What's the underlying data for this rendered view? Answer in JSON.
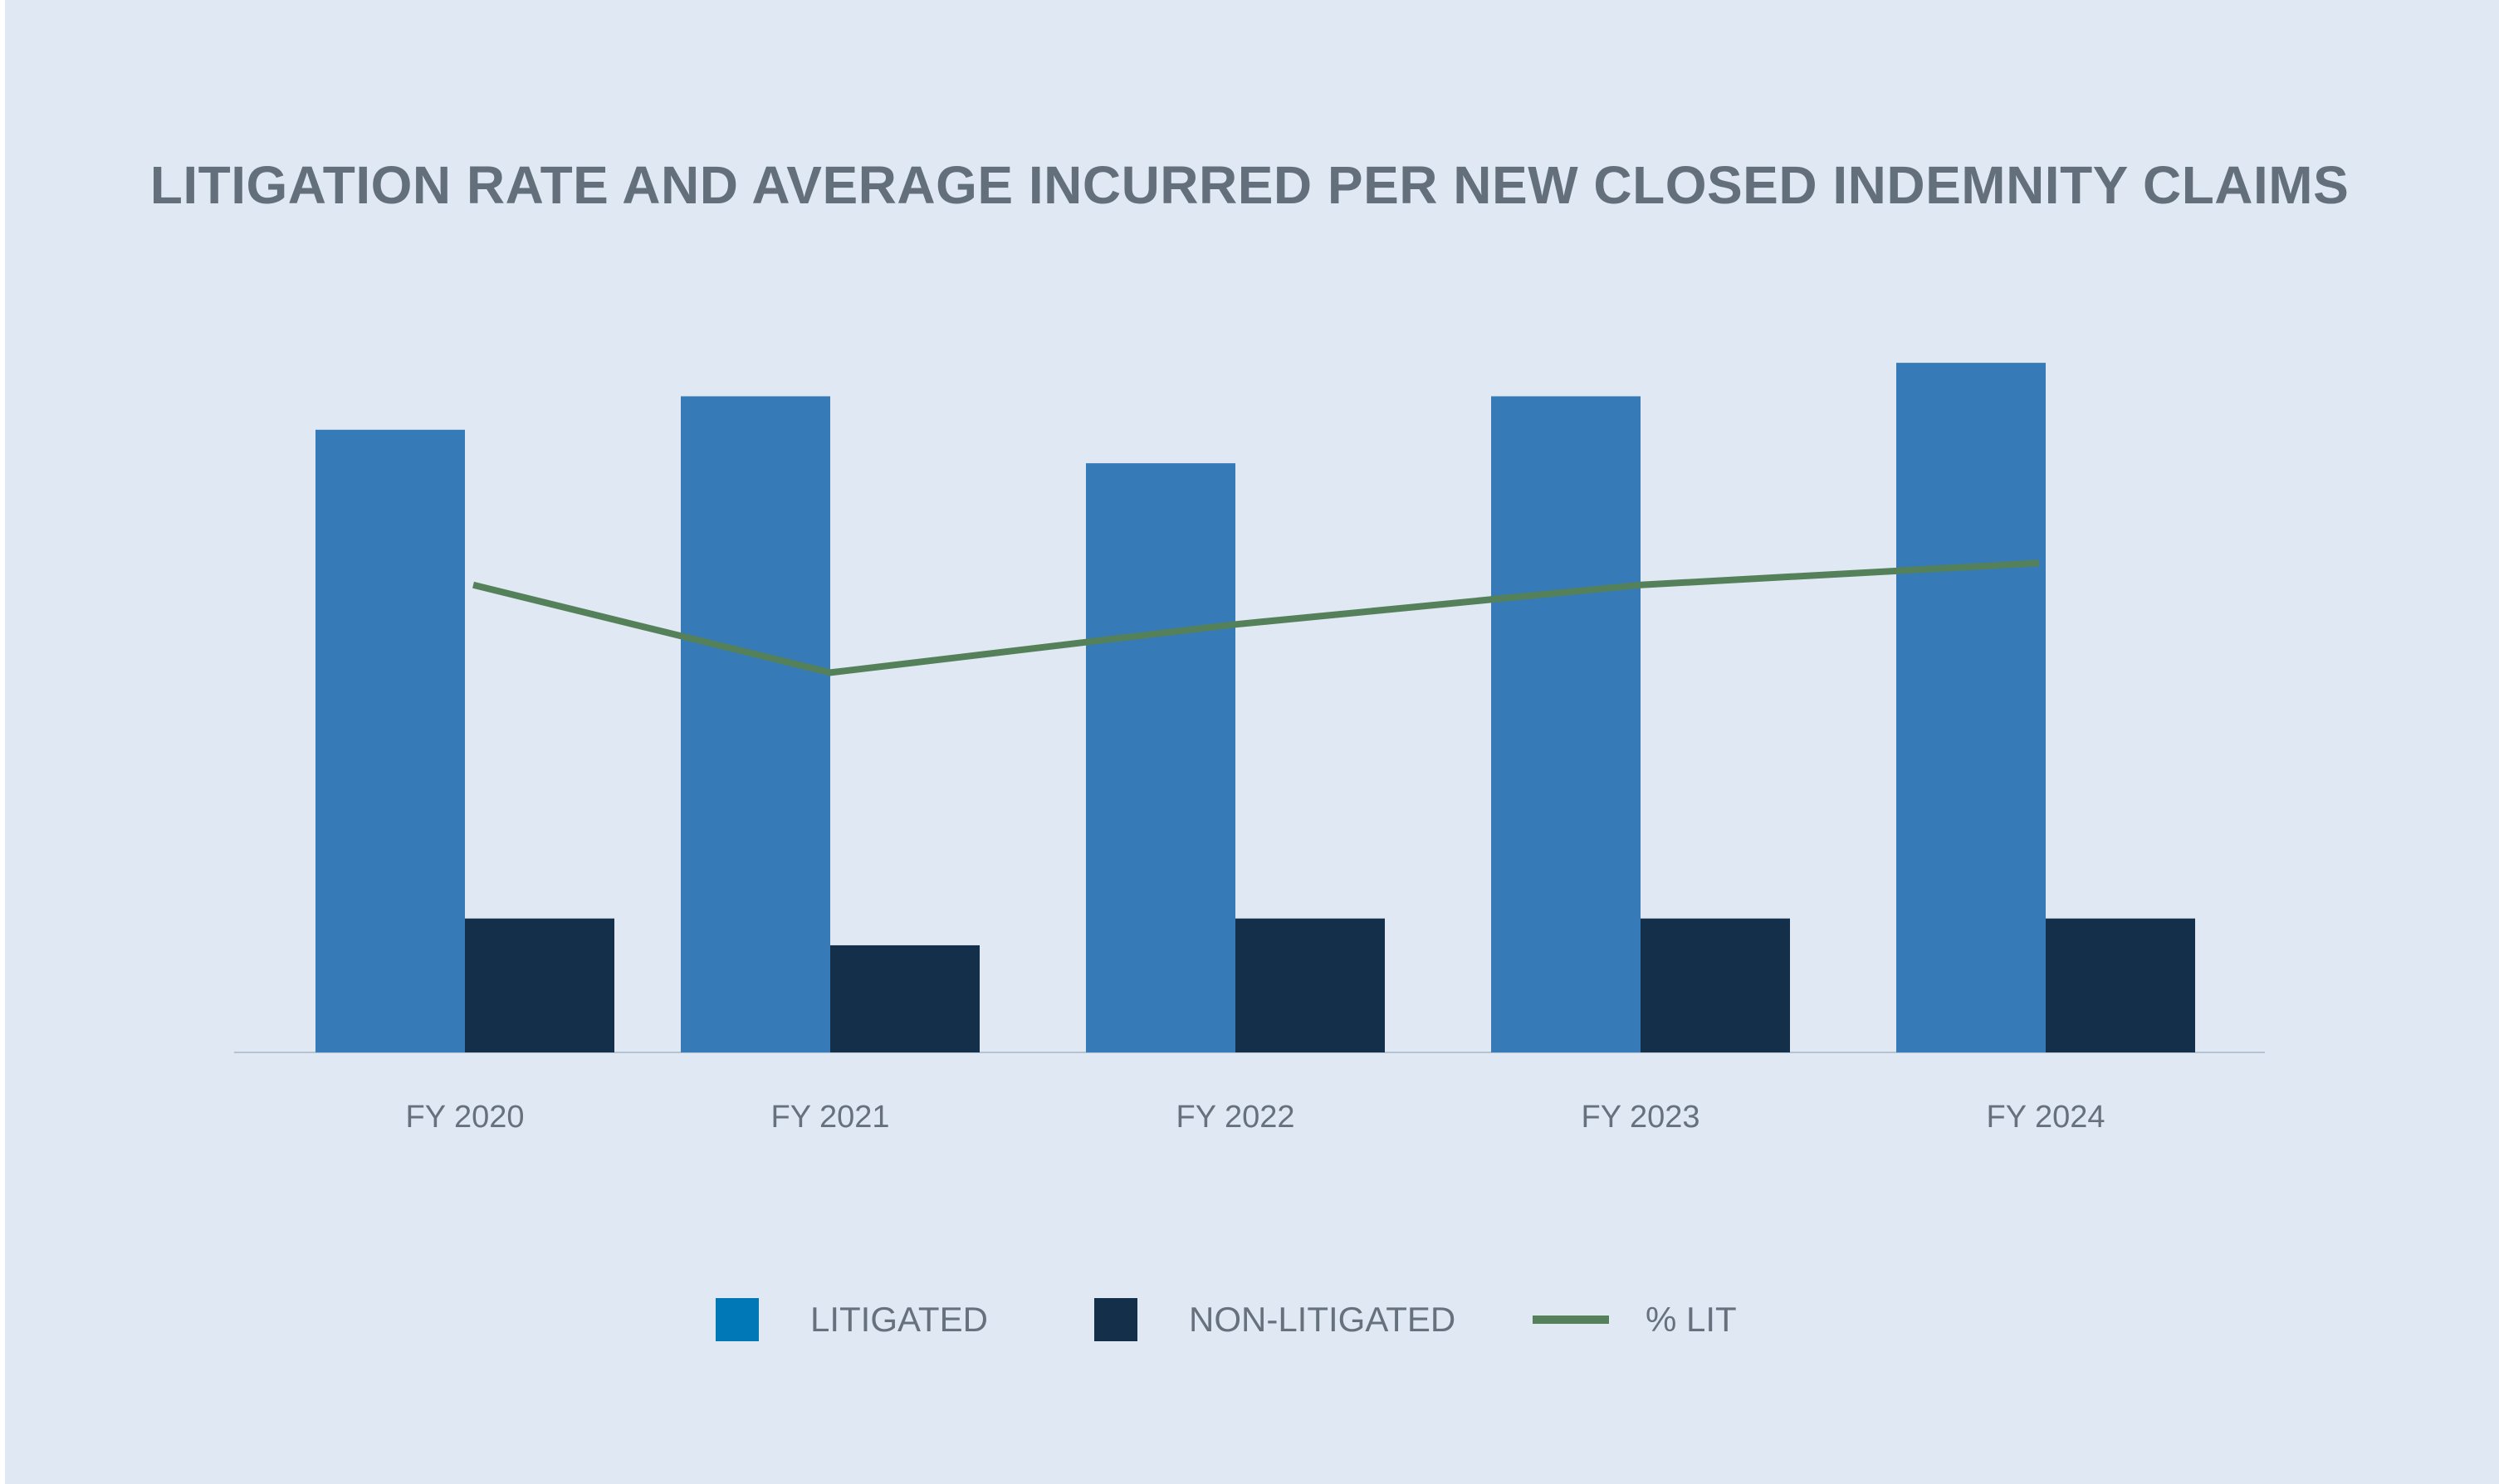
{
  "colors": {
    "background": "#dfe8f3",
    "litigated": "#367bb8",
    "non_litigated": "#132f49",
    "pct_lit": "#548159",
    "axis": "#b6c3d3",
    "text": "#66717d"
  },
  "chart_data": {
    "type": "bar",
    "title": "LITIGATION RATE AND AVERAGE INCURRED PER NEW CLOSED INDEMNITY CLAIMS",
    "categories": [
      "FY 2020",
      "FY 2021",
      "FY 2022",
      "FY 2023",
      "FY 2024"
    ],
    "series": [
      {
        "name": "LITIGATED",
        "type": "bar",
        "values": [
          93,
          98,
          88,
          98,
          103
        ]
      },
      {
        "name": "NON-LITIGATED",
        "type": "bar",
        "values": [
          20,
          16,
          20,
          20,
          20
        ]
      },
      {
        "name": "% LIT",
        "type": "line",
        "values": [
          32,
          26,
          29.3,
          32,
          33.5
        ]
      }
    ],
    "ylim": [
      0,
      120
    ],
    "line_ylim": [
      0,
      55
    ],
    "grid": false,
    "legend": "bottom-center",
    "legend_items": [
      {
        "label": "LITIGATED",
        "marker": "square",
        "color": "#0077b6"
      },
      {
        "label": "NON-LITIGATED",
        "marker": "square",
        "color": "#132f49"
      },
      {
        "label": "% LIT",
        "marker": "line",
        "color": "#548159"
      }
    ]
  }
}
